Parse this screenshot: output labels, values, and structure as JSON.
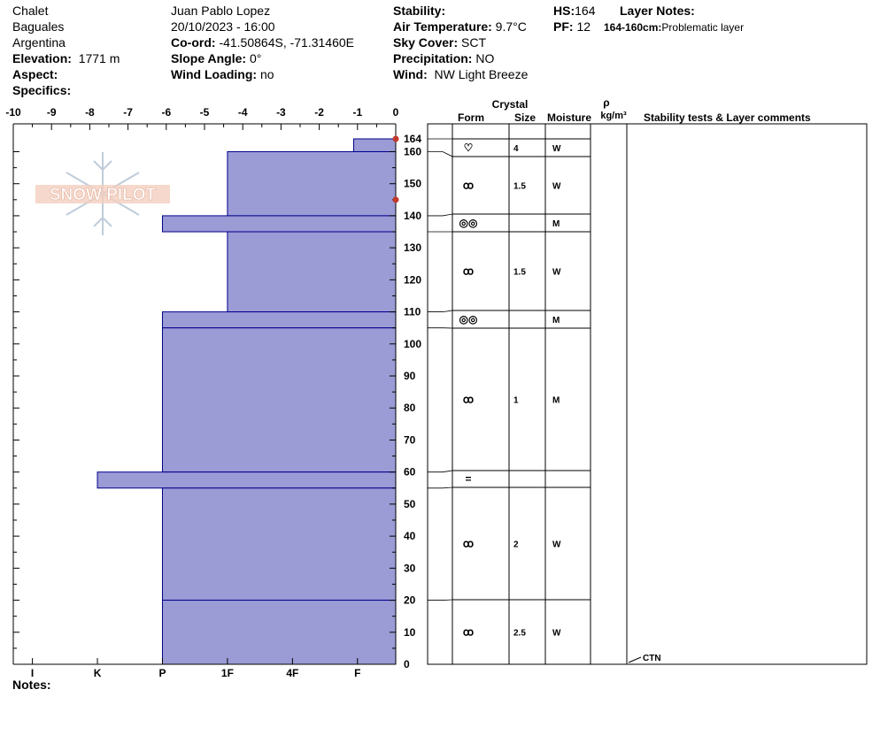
{
  "header": {
    "site": "Chalet",
    "location": "Baguales",
    "country": "Argentina",
    "elevation_label": "Elevation:",
    "elevation": "1771 m",
    "aspect_label": "Aspect:",
    "specifics_label": "Specifics:",
    "observer": "Juan Pablo  Lopez",
    "datetime": "20/10/2023 - 16:00",
    "coord_label": "Co-ord:",
    "coord": "-41.50864S, -71.31460E",
    "slope_label": "Slope Angle:",
    "slope": "0°",
    "wind_loading_label": "Wind Loading:",
    "wind_loading": "no",
    "stability_label": "Stability:",
    "air_temp_label": "Air Temperature:",
    "air_temp": "9.7°C",
    "sky_label": "Sky Cover:",
    "sky": "SCT",
    "precip_label": "Precipitation:",
    "precip": "NO",
    "wind_label": "Wind:",
    "wind": "NW Light Breeze",
    "hs_label": "HS:",
    "hs": "164",
    "pf_label": "PF:",
    "pf": "12",
    "layer_notes_label": "Layer Notes:",
    "layer_note_range": "164-160cm:",
    "layer_note_text": "Problematic layer"
  },
  "notes_label": "Notes:",
  "logo_text": "SNOW PILOT",
  "table_headers": {
    "crystal": "Crystal",
    "form": "Form",
    "size": "Size",
    "moisture": "Moisture",
    "rho": "ρ",
    "density_unit": "kg/m³",
    "comments": "Stability tests & Layer comments"
  },
  "colors": {
    "hardness_fill": "#9b9bd6",
    "layer_line": "#00008b",
    "marker": "#c0392b"
  },
  "chart_data": {
    "type": "bar",
    "title": "",
    "x_axis_top": {
      "range": [
        -10,
        0
      ],
      "ticks": [
        "-10",
        "-9",
        "-8",
        "-7",
        "-6",
        "-5",
        "-4",
        "-3",
        "-2",
        "-1",
        "0"
      ]
    },
    "x_axis_bottom": {
      "ticks": [
        "I",
        "K",
        "P",
        "1F",
        "4F",
        "F"
      ],
      "values": [
        -9.5,
        -7.8,
        -6.1,
        -4.4,
        -2.7,
        -1
      ]
    },
    "y_axis": {
      "range": [
        0,
        164
      ],
      "ticks": [
        "0",
        "10",
        "20",
        "30",
        "40",
        "50",
        "60",
        "70",
        "80",
        "90",
        "100",
        "110",
        "120",
        "130",
        "140",
        "150",
        "160",
        "164"
      ],
      "values": [
        0,
        10,
        20,
        30,
        40,
        50,
        60,
        70,
        80,
        90,
        100,
        110,
        120,
        130,
        140,
        150,
        160,
        164
      ]
    },
    "hardness_layers": [
      {
        "top": 164,
        "bottom": 160,
        "hardness": -1.1
      },
      {
        "top": 160,
        "bottom": 140,
        "hardness": -4.4
      },
      {
        "top": 140,
        "bottom": 135,
        "hardness": -6.1
      },
      {
        "top": 135,
        "bottom": 110,
        "hardness": -4.4
      },
      {
        "top": 110,
        "bottom": 105,
        "hardness": -6.1
      },
      {
        "top": 105,
        "bottom": 60,
        "hardness": -6.1
      },
      {
        "top": 60,
        "bottom": 55,
        "hardness": -7.8
      },
      {
        "top": 55,
        "bottom": 20,
        "hardness": -6.1
      },
      {
        "top": 20,
        "bottom": 0,
        "hardness": -6.1
      }
    ],
    "markers": [
      164,
      145
    ],
    "layers": [
      {
        "top": 164,
        "bottom": 160,
        "form": "♡",
        "size": "4",
        "moisture": "W"
      },
      {
        "top": 160,
        "bottom": 140,
        "form": "ꝏ",
        "size": "1.5",
        "moisture": "W"
      },
      {
        "top": 140,
        "bottom": 135,
        "form": "◎◎",
        "size": "",
        "moisture": "M"
      },
      {
        "top": 135,
        "bottom": 110,
        "form": "ꝏ",
        "size": "1.5",
        "moisture": "W"
      },
      {
        "top": 110,
        "bottom": 105,
        "form": "◎◎",
        "size": "",
        "moisture": "M"
      },
      {
        "top": 105,
        "bottom": 60,
        "form": "ꝏ",
        "size": "1",
        "moisture": "M"
      },
      {
        "top": 60,
        "bottom": 55,
        "form": "=",
        "size": "",
        "moisture": ""
      },
      {
        "top": 55,
        "bottom": 20,
        "form": "ꝏ",
        "size": "2",
        "moisture": "W"
      },
      {
        "top": 20,
        "bottom": 0,
        "form": "ꝏ",
        "size": "2.5",
        "moisture": "W"
      }
    ],
    "stability_tests": [
      {
        "depth": 0,
        "label": "CTN"
      }
    ]
  }
}
